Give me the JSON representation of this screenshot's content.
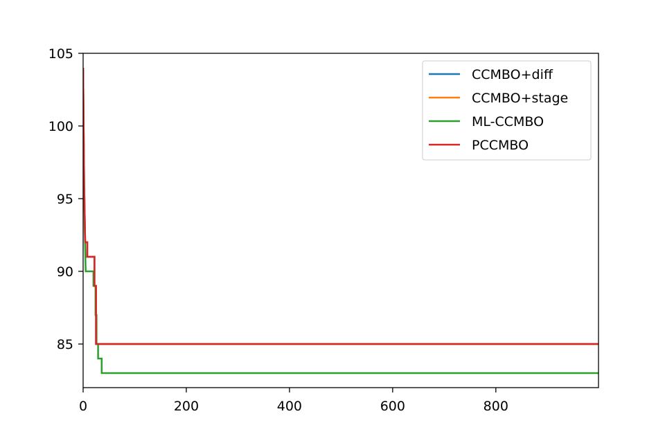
{
  "chart_data": {
    "type": "line",
    "title": "",
    "xlabel": "",
    "ylabel": "",
    "xlim": [
      0,
      999
    ],
    "ylim": [
      82,
      105
    ],
    "x_ticks": [
      0,
      200,
      400,
      600,
      800
    ],
    "y_ticks": [
      85,
      90,
      95,
      100,
      105
    ],
    "grid": false,
    "legend_position": "top-right",
    "series": [
      {
        "name": "CCMBO+diff",
        "color": "#1f77b4",
        "points": [
          [
            0,
            104
          ],
          [
            2,
            96
          ],
          [
            4,
            92
          ],
          [
            8,
            92
          ],
          [
            8,
            91
          ],
          [
            22,
            91
          ],
          [
            22,
            89
          ],
          [
            25,
            89
          ],
          [
            25,
            85
          ],
          [
            999,
            85
          ]
        ]
      },
      {
        "name": "CCMBO+stage",
        "color": "#ff7f0e",
        "points": [
          [
            0,
            104
          ],
          [
            2,
            96
          ],
          [
            4,
            92
          ],
          [
            8,
            92
          ],
          [
            8,
            91
          ],
          [
            22,
            91
          ],
          [
            22,
            89
          ],
          [
            25,
            89
          ],
          [
            25,
            85
          ],
          [
            999,
            85
          ]
        ]
      },
      {
        "name": "ML-CCMBO",
        "color": "#2ca02c",
        "points": [
          [
            0,
            104
          ],
          [
            1,
            98
          ],
          [
            3,
            93
          ],
          [
            5,
            90
          ],
          [
            20,
            90
          ],
          [
            20,
            89
          ],
          [
            24,
            89
          ],
          [
            24,
            87
          ],
          [
            26,
            87
          ],
          [
            26,
            85
          ],
          [
            29,
            85
          ],
          [
            29,
            84
          ],
          [
            36,
            84
          ],
          [
            36,
            83
          ],
          [
            999,
            83
          ]
        ]
      },
      {
        "name": "PCCMBO",
        "color": "#d62728",
        "points": [
          [
            0,
            104
          ],
          [
            2,
            96
          ],
          [
            4,
            92
          ],
          [
            8,
            92
          ],
          [
            8,
            91
          ],
          [
            22,
            91
          ],
          [
            22,
            89
          ],
          [
            25,
            89
          ],
          [
            25,
            85
          ],
          [
            999,
            85
          ]
        ]
      }
    ]
  }
}
